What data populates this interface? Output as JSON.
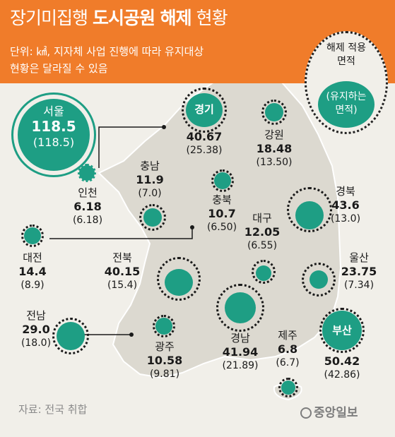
{
  "header": {
    "title_regular": "장기미집행",
    "title_bold": "도시공원 해제",
    "title_end": "현황",
    "subtitle_line1": "단위: ㎢, 지자체 사업 진행에 따라 유지대상",
    "subtitle_line2": "현황은 달라질 수 있음"
  },
  "legend": {
    "outer_line1": "해제 적용",
    "outer_line2": "면적",
    "inner_line1": "(유지하는",
    "inner_line2": "면적)"
  },
  "regions": {
    "seoul": {
      "name": "서울",
      "value": "118.5",
      "retained": "(118.5)"
    },
    "gyeonggi": {
      "name": "경기",
      "value": "40.67",
      "retained": "(25.38)"
    },
    "gangwon": {
      "name": "강원",
      "value": "18.48",
      "retained": "(13.50)"
    },
    "incheon": {
      "name": "인천",
      "value": "6.18",
      "retained": "(6.18)"
    },
    "chungnam": {
      "name": "충남",
      "value": "11.9",
      "retained": "(7.0)"
    },
    "chungbuk": {
      "name": "충북",
      "value": "10.7",
      "retained": "(6.50)"
    },
    "gyeongbuk": {
      "name": "경북",
      "value": "43.6",
      "retained": "(13.0)"
    },
    "daejeon": {
      "name": "대전",
      "value": "14.4",
      "retained": "(8.9)"
    },
    "daegu": {
      "name": "대구",
      "value": "12.05",
      "retained": "(6.55)"
    },
    "jeonbuk": {
      "name": "전북",
      "value": "40.15",
      "retained": "(15.4)"
    },
    "ulsan": {
      "name": "울산",
      "value": "23.75",
      "retained": "(7.34)"
    },
    "jeonnam": {
      "name": "전남",
      "value": "29.0",
      "retained": "(18.0)"
    },
    "gwangju": {
      "name": "광주",
      "value": "10.58",
      "retained": "(9.81)"
    },
    "gyeongnam": {
      "name": "경남",
      "value": "41.94",
      "retained": "(21.89)"
    },
    "jeju": {
      "name": "제주",
      "value": "6.8",
      "retained": "(6.7)"
    },
    "busan": {
      "name": "부산",
      "value": "50.42",
      "retained": "(42.86)"
    }
  },
  "colors": {
    "header": "#f07c2a",
    "background": "#f1efe9",
    "retained_circle": "#1e9e84",
    "map_land": "#dcd9d0"
  },
  "footer": {
    "source": "자료: 전국 취합",
    "logo": "중앙일보"
  }
}
